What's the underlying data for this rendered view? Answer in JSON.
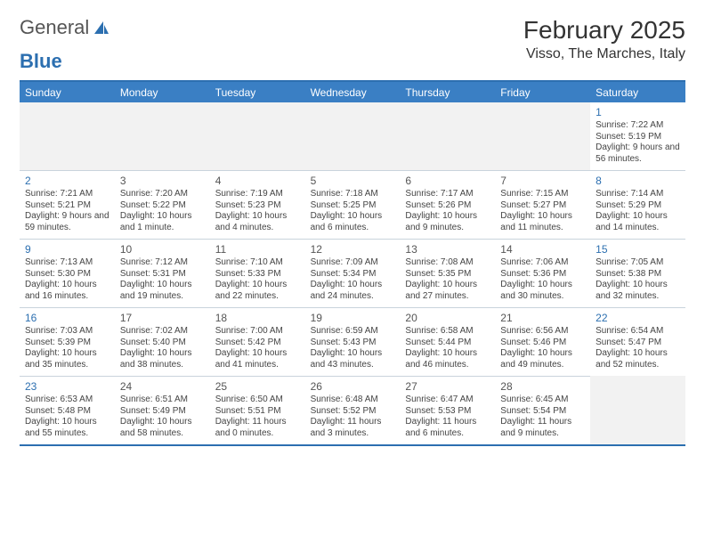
{
  "logo": {
    "text1": "General",
    "text2": "Blue"
  },
  "title": "February 2025",
  "location": "Visso, The Marches, Italy",
  "day_headers": [
    "Sunday",
    "Monday",
    "Tuesday",
    "Wednesday",
    "Thursday",
    "Friday",
    "Saturday"
  ],
  "colors": {
    "accent": "#2c6fb0",
    "header_bg": "#3a7fc4",
    "rule": "#c9d3dc",
    "empty_bg": "#f2f2f2"
  },
  "weeks": [
    [
      null,
      null,
      null,
      null,
      null,
      null,
      {
        "n": "1",
        "sr": "Sunrise: 7:22 AM",
        "ss": "Sunset: 5:19 PM",
        "dl": "Daylight: 9 hours and 56 minutes."
      }
    ],
    [
      {
        "n": "2",
        "sr": "Sunrise: 7:21 AM",
        "ss": "Sunset: 5:21 PM",
        "dl": "Daylight: 9 hours and 59 minutes."
      },
      {
        "n": "3",
        "sr": "Sunrise: 7:20 AM",
        "ss": "Sunset: 5:22 PM",
        "dl": "Daylight: 10 hours and 1 minute."
      },
      {
        "n": "4",
        "sr": "Sunrise: 7:19 AM",
        "ss": "Sunset: 5:23 PM",
        "dl": "Daylight: 10 hours and 4 minutes."
      },
      {
        "n": "5",
        "sr": "Sunrise: 7:18 AM",
        "ss": "Sunset: 5:25 PM",
        "dl": "Daylight: 10 hours and 6 minutes."
      },
      {
        "n": "6",
        "sr": "Sunrise: 7:17 AM",
        "ss": "Sunset: 5:26 PM",
        "dl": "Daylight: 10 hours and 9 minutes."
      },
      {
        "n": "7",
        "sr": "Sunrise: 7:15 AM",
        "ss": "Sunset: 5:27 PM",
        "dl": "Daylight: 10 hours and 11 minutes."
      },
      {
        "n": "8",
        "sr": "Sunrise: 7:14 AM",
        "ss": "Sunset: 5:29 PM",
        "dl": "Daylight: 10 hours and 14 minutes."
      }
    ],
    [
      {
        "n": "9",
        "sr": "Sunrise: 7:13 AM",
        "ss": "Sunset: 5:30 PM",
        "dl": "Daylight: 10 hours and 16 minutes."
      },
      {
        "n": "10",
        "sr": "Sunrise: 7:12 AM",
        "ss": "Sunset: 5:31 PM",
        "dl": "Daylight: 10 hours and 19 minutes."
      },
      {
        "n": "11",
        "sr": "Sunrise: 7:10 AM",
        "ss": "Sunset: 5:33 PM",
        "dl": "Daylight: 10 hours and 22 minutes."
      },
      {
        "n": "12",
        "sr": "Sunrise: 7:09 AM",
        "ss": "Sunset: 5:34 PM",
        "dl": "Daylight: 10 hours and 24 minutes."
      },
      {
        "n": "13",
        "sr": "Sunrise: 7:08 AM",
        "ss": "Sunset: 5:35 PM",
        "dl": "Daylight: 10 hours and 27 minutes."
      },
      {
        "n": "14",
        "sr": "Sunrise: 7:06 AM",
        "ss": "Sunset: 5:36 PM",
        "dl": "Daylight: 10 hours and 30 minutes."
      },
      {
        "n": "15",
        "sr": "Sunrise: 7:05 AM",
        "ss": "Sunset: 5:38 PM",
        "dl": "Daylight: 10 hours and 32 minutes."
      }
    ],
    [
      {
        "n": "16",
        "sr": "Sunrise: 7:03 AM",
        "ss": "Sunset: 5:39 PM",
        "dl": "Daylight: 10 hours and 35 minutes."
      },
      {
        "n": "17",
        "sr": "Sunrise: 7:02 AM",
        "ss": "Sunset: 5:40 PM",
        "dl": "Daylight: 10 hours and 38 minutes."
      },
      {
        "n": "18",
        "sr": "Sunrise: 7:00 AM",
        "ss": "Sunset: 5:42 PM",
        "dl": "Daylight: 10 hours and 41 minutes."
      },
      {
        "n": "19",
        "sr": "Sunrise: 6:59 AM",
        "ss": "Sunset: 5:43 PM",
        "dl": "Daylight: 10 hours and 43 minutes."
      },
      {
        "n": "20",
        "sr": "Sunrise: 6:58 AM",
        "ss": "Sunset: 5:44 PM",
        "dl": "Daylight: 10 hours and 46 minutes."
      },
      {
        "n": "21",
        "sr": "Sunrise: 6:56 AM",
        "ss": "Sunset: 5:46 PM",
        "dl": "Daylight: 10 hours and 49 minutes."
      },
      {
        "n": "22",
        "sr": "Sunrise: 6:54 AM",
        "ss": "Sunset: 5:47 PM",
        "dl": "Daylight: 10 hours and 52 minutes."
      }
    ],
    [
      {
        "n": "23",
        "sr": "Sunrise: 6:53 AM",
        "ss": "Sunset: 5:48 PM",
        "dl": "Daylight: 10 hours and 55 minutes."
      },
      {
        "n": "24",
        "sr": "Sunrise: 6:51 AM",
        "ss": "Sunset: 5:49 PM",
        "dl": "Daylight: 10 hours and 58 minutes."
      },
      {
        "n": "25",
        "sr": "Sunrise: 6:50 AM",
        "ss": "Sunset: 5:51 PM",
        "dl": "Daylight: 11 hours and 0 minutes."
      },
      {
        "n": "26",
        "sr": "Sunrise: 6:48 AM",
        "ss": "Sunset: 5:52 PM",
        "dl": "Daylight: 11 hours and 3 minutes."
      },
      {
        "n": "27",
        "sr": "Sunrise: 6:47 AM",
        "ss": "Sunset: 5:53 PM",
        "dl": "Daylight: 11 hours and 6 minutes."
      },
      {
        "n": "28",
        "sr": "Sunrise: 6:45 AM",
        "ss": "Sunset: 5:54 PM",
        "dl": "Daylight: 11 hours and 9 minutes."
      },
      null
    ]
  ]
}
